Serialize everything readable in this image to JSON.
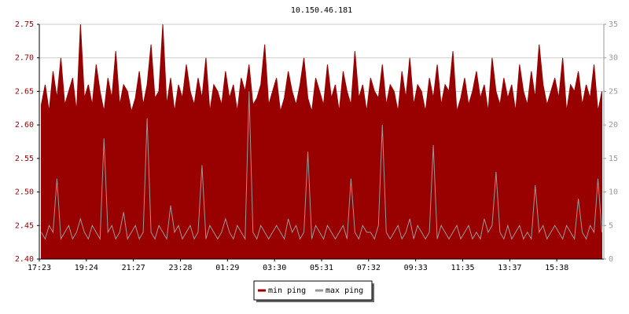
{
  "chart_data": {
    "type": "area-line",
    "title": "10.150.46.181",
    "categories": [
      "17:23",
      null,
      null,
      null,
      null,
      null,
      null,
      null,
      null,
      null,
      null,
      null,
      "19:24",
      null,
      null,
      null,
      null,
      null,
      null,
      null,
      null,
      null,
      null,
      null,
      "21:27",
      null,
      null,
      null,
      null,
      null,
      null,
      null,
      null,
      null,
      null,
      null,
      "23:28",
      null,
      null,
      null,
      null,
      null,
      null,
      null,
      null,
      null,
      null,
      null,
      "01:29",
      null,
      null,
      null,
      null,
      null,
      null,
      null,
      null,
      null,
      null,
      null,
      "03:30",
      null,
      null,
      null,
      null,
      null,
      null,
      null,
      null,
      null,
      null,
      null,
      "05:31",
      null,
      null,
      null,
      null,
      null,
      null,
      null,
      null,
      null,
      null,
      null,
      "07:32",
      null,
      null,
      null,
      null,
      null,
      null,
      null,
      null,
      null,
      null,
      null,
      "09:33",
      null,
      null,
      null,
      null,
      null,
      null,
      null,
      null,
      null,
      null,
      null,
      "11:35",
      null,
      null,
      null,
      null,
      null,
      null,
      null,
      null,
      null,
      null,
      null,
      "13:37",
      null,
      null,
      null,
      null,
      null,
      null,
      null,
      null,
      null,
      null,
      null,
      "15:38",
      null,
      null,
      null,
      null,
      null,
      null,
      null,
      null,
      null,
      null,
      null
    ],
    "series": [
      {
        "name": "min ping",
        "color": "#990000",
        "axis": "y",
        "values": [
          2.63,
          2.66,
          2.62,
          2.68,
          2.64,
          2.7,
          2.63,
          2.65,
          2.67,
          2.62,
          2.75,
          2.64,
          2.66,
          2.63,
          2.69,
          2.65,
          2.62,
          2.67,
          2.64,
          2.71,
          2.63,
          2.66,
          2.65,
          2.62,
          2.64,
          2.68,
          2.63,
          2.66,
          2.72,
          2.64,
          2.65,
          2.75,
          2.63,
          2.67,
          2.62,
          2.66,
          2.64,
          2.69,
          2.65,
          2.63,
          2.67,
          2.64,
          2.7,
          2.62,
          2.66,
          2.65,
          2.63,
          2.68,
          2.64,
          2.66,
          2.62,
          2.67,
          2.65,
          2.69,
          2.63,
          2.64,
          2.66,
          2.72,
          2.63,
          2.65,
          2.67,
          2.62,
          2.64,
          2.68,
          2.65,
          2.63,
          2.66,
          2.7,
          2.64,
          2.62,
          2.67,
          2.65,
          2.63,
          2.69,
          2.64,
          2.66,
          2.62,
          2.68,
          2.65,
          2.63,
          2.71,
          2.64,
          2.66,
          2.62,
          2.67,
          2.65,
          2.64,
          2.69,
          2.63,
          2.66,
          2.65,
          2.62,
          2.68,
          2.64,
          2.7,
          2.63,
          2.66,
          2.65,
          2.62,
          2.67,
          2.64,
          2.69,
          2.63,
          2.66,
          2.65,
          2.71,
          2.62,
          2.64,
          2.67,
          2.63,
          2.65,
          2.68,
          2.64,
          2.66,
          2.62,
          2.7,
          2.65,
          2.63,
          2.67,
          2.64,
          2.66,
          2.62,
          2.69,
          2.65,
          2.63,
          2.68,
          2.64,
          2.72,
          2.66,
          2.63,
          2.65,
          2.67,
          2.64,
          2.7,
          2.62,
          2.66,
          2.65,
          2.68,
          2.63,
          2.66,
          2.64,
          2.69,
          2.62,
          2.65
        ]
      },
      {
        "name": "max ping",
        "color": "#999999",
        "axis": "y2",
        "values": [
          4,
          3,
          5,
          4,
          12,
          3,
          4,
          5,
          3,
          4,
          6,
          4,
          3,
          5,
          4,
          3,
          18,
          4,
          5,
          3,
          4,
          7,
          3,
          4,
          5,
          3,
          4,
          21,
          4,
          3,
          5,
          4,
          3,
          8,
          4,
          5,
          3,
          4,
          5,
          3,
          4,
          14,
          3,
          5,
          4,
          3,
          4,
          6,
          4,
          3,
          5,
          4,
          3,
          25,
          4,
          3,
          5,
          4,
          3,
          4,
          5,
          4,
          3,
          6,
          4,
          5,
          3,
          4,
          16,
          3,
          5,
          4,
          3,
          5,
          4,
          3,
          4,
          5,
          3,
          12,
          4,
          3,
          5,
          4,
          4,
          3,
          5,
          20,
          4,
          3,
          4,
          5,
          3,
          4,
          6,
          3,
          5,
          4,
          3,
          4,
          17,
          3,
          5,
          4,
          3,
          4,
          5,
          3,
          4,
          5,
          3,
          4,
          3,
          6,
          4,
          5,
          13,
          4,
          3,
          5,
          3,
          4,
          5,
          3,
          4,
          3,
          11,
          4,
          5,
          3,
          4,
          5,
          4,
          3,
          5,
          4,
          3,
          9,
          4,
          3,
          5,
          4,
          12,
          4
        ]
      }
    ],
    "ylim": [
      2.4,
      2.75
    ],
    "yticks": [
      {
        "value": 2.4,
        "label": "2.40"
      },
      2.45,
      {
        "value": 2.5,
        "label": "2.50"
      },
      2.55,
      {
        "value": 2.6,
        "label": "2.60"
      },
      2.65,
      {
        "value": 2.7,
        "label": "2.70"
      },
      2.75
    ],
    "y2lim": [
      0,
      35
    ],
    "y2ticks": [
      0,
      5,
      10,
      15,
      20,
      25,
      30,
      35
    ],
    "grid": true
  }
}
